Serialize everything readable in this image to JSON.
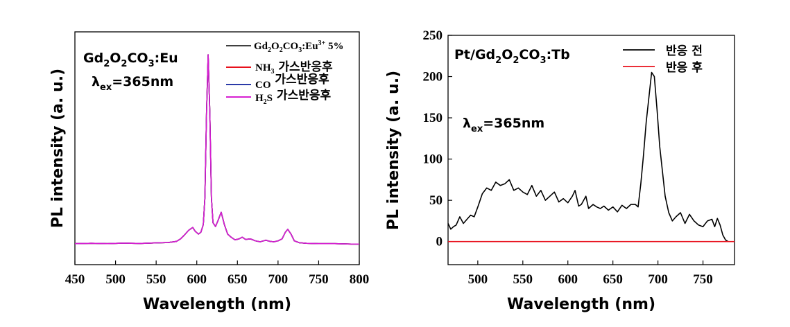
{
  "chart_data": [
    {
      "type": "line",
      "xlabel": "Wavelength (nm)",
      "ylabel": "PL intensity  (a. u.)",
      "xlim": [
        450,
        800
      ],
      "xticks": [
        450,
        500,
        550,
        600,
        650,
        700,
        750,
        800
      ],
      "yticks_shown": false,
      "grid": false,
      "legend_position": "top-right",
      "annotation_material": "Gd2O2CO3:Eu",
      "annotation_excitation": "λex=365nm",
      "legend": [
        {
          "label": "Gd2O2CO3:Eu3+ 5%",
          "color": "#000000"
        },
        {
          "label": "NH3 가스반응후",
          "color": "#e8111c"
        },
        {
          "label": "CO 가스반응후",
          "color": "#2b3aa8"
        },
        {
          "label": "H2S 가스반응후",
          "color": "#d61fd1"
        }
      ],
      "x": [
        450,
        470,
        490,
        510,
        530,
        550,
        565,
        575,
        580,
        585,
        590,
        595,
        598,
        602,
        605,
        608,
        610,
        612,
        614,
        616,
        618,
        620,
        623,
        626,
        630,
        634,
        638,
        642,
        647,
        652,
        656,
        660,
        666,
        672,
        678,
        685,
        690,
        695,
        700,
        705,
        709,
        712,
        716,
        720,
        726,
        735,
        750,
        770,
        790,
        800
      ],
      "series": [
        {
          "name": "Gd2O2CO3:Eu3+ 5%",
          "color": "#000000",
          "values": [
            1.0,
            1.2,
            1.0,
            1.3,
            1.1,
            1.4,
            1.6,
            2.2,
            3.5,
            5.6,
            8.0,
            9.5,
            7.5,
            6.0,
            7.0,
            11.0,
            25.0,
            70.0,
            100.0,
            70.0,
            25.0,
            12.0,
            10.0,
            13.0,
            17.5,
            11.0,
            6.0,
            4.5,
            3.0,
            3.5,
            4.4,
            3.2,
            3.5,
            2.5,
            2.0,
            2.8,
            2.2,
            2.0,
            2.5,
            3.5,
            7.0,
            8.5,
            6.0,
            2.5,
            1.5,
            1.2,
            1.0,
            1.0,
            0.8,
            0.8
          ]
        },
        {
          "name": "NH3 가스반응후",
          "color": "#e8111c",
          "values": [
            1.0,
            1.2,
            1.0,
            1.3,
            1.1,
            1.4,
            1.6,
            2.2,
            3.5,
            5.6,
            8.0,
            9.5,
            7.5,
            6.0,
            7.0,
            11.0,
            25.0,
            70.0,
            100.0,
            70.0,
            25.0,
            12.0,
            10.0,
            13.0,
            17.5,
            11.0,
            6.0,
            4.5,
            3.0,
            3.5,
            4.4,
            3.2,
            3.5,
            2.5,
            2.0,
            2.8,
            2.2,
            2.0,
            2.5,
            3.5,
            7.0,
            8.5,
            6.0,
            2.5,
            1.5,
            1.2,
            1.0,
            1.0,
            0.8,
            0.8
          ]
        },
        {
          "name": "CO 가스반응후",
          "color": "#2b3aa8",
          "values": [
            1.0,
            1.2,
            1.0,
            1.3,
            1.1,
            1.4,
            1.6,
            2.2,
            3.5,
            5.6,
            8.0,
            9.5,
            7.5,
            6.0,
            7.0,
            11.0,
            25.0,
            70.0,
            100.0,
            70.0,
            25.0,
            12.0,
            10.0,
            13.0,
            17.5,
            11.0,
            6.0,
            4.5,
            3.0,
            3.5,
            4.4,
            3.2,
            3.5,
            2.5,
            2.0,
            2.8,
            2.2,
            2.0,
            2.5,
            3.5,
            7.0,
            8.5,
            6.0,
            2.5,
            1.5,
            1.2,
            1.0,
            1.0,
            0.8,
            0.8
          ]
        },
        {
          "name": "H2S 가스반응후",
          "color": "#d61fd1",
          "values": [
            1.0,
            1.2,
            1.0,
            1.3,
            1.1,
            1.4,
            1.6,
            2.2,
            3.5,
            5.6,
            8.0,
            9.5,
            7.5,
            6.0,
            7.0,
            11.0,
            25.0,
            70.0,
            100.0,
            70.0,
            25.0,
            12.0,
            10.0,
            13.0,
            17.5,
            11.0,
            6.0,
            4.5,
            3.0,
            3.5,
            4.4,
            3.2,
            3.5,
            2.5,
            2.0,
            2.8,
            2.2,
            2.0,
            2.5,
            3.5,
            7.0,
            8.5,
            6.0,
            2.5,
            1.5,
            1.2,
            1.0,
            1.0,
            0.8,
            0.8
          ]
        }
      ],
      "ylim": [
        -10,
        112
      ]
    },
    {
      "type": "line",
      "xlabel": "Wavelength (nm)",
      "ylabel": "PL intensity  (a. u.)",
      "xlim": [
        467,
        785
      ],
      "xticks": [
        500,
        550,
        600,
        650,
        700,
        750
      ],
      "ylim": [
        -28,
        250
      ],
      "yticks": [
        0,
        50,
        100,
        150,
        200,
        250
      ],
      "grid": false,
      "legend_position": "top-right",
      "annotation_material": "Pt/Gd2O2CO3:Tb",
      "annotation_excitation": "λex=365nm",
      "legend": [
        {
          "label": "반응 전",
          "color": "#000000"
        },
        {
          "label": "반응 후",
          "color": "#e8111c"
        }
      ],
      "series": [
        {
          "name": "반응 전",
          "color": "#000000",
          "x": [
            467,
            470,
            473,
            476,
            480,
            484,
            488,
            492,
            496,
            500,
            505,
            510,
            515,
            520,
            525,
            530,
            535,
            540,
            545,
            550,
            555,
            560,
            565,
            570,
            575,
            580,
            585,
            590,
            595,
            600,
            605,
            608,
            612,
            615,
            620,
            623,
            628,
            632,
            636,
            640,
            645,
            650,
            655,
            660,
            665,
            670,
            675,
            678,
            681,
            684,
            687,
            690,
            693,
            696,
            699,
            702,
            705,
            708,
            712,
            716,
            720,
            725,
            730,
            735,
            740,
            745,
            750,
            755,
            760,
            763,
            766,
            769,
            772,
            775,
            778
          ],
          "values": [
            22,
            15,
            18,
            20,
            30,
            22,
            27,
            32,
            30,
            42,
            58,
            65,
            62,
            72,
            68,
            70,
            75,
            62,
            65,
            60,
            57,
            68,
            55,
            62,
            50,
            55,
            60,
            48,
            52,
            47,
            55,
            62,
            43,
            45,
            55,
            40,
            45,
            42,
            40,
            43,
            38,
            42,
            36,
            44,
            40,
            45,
            45,
            42,
            70,
            105,
            145,
            175,
            205,
            200,
            160,
            115,
            85,
            55,
            35,
            25,
            30,
            35,
            22,
            33,
            25,
            20,
            18,
            25,
            27,
            18,
            28,
            20,
            8,
            2,
            0
          ]
        },
        {
          "name": "반응 후",
          "color": "#e8111c",
          "x": [
            467,
            785
          ],
          "values": [
            0,
            0
          ]
        }
      ]
    }
  ]
}
